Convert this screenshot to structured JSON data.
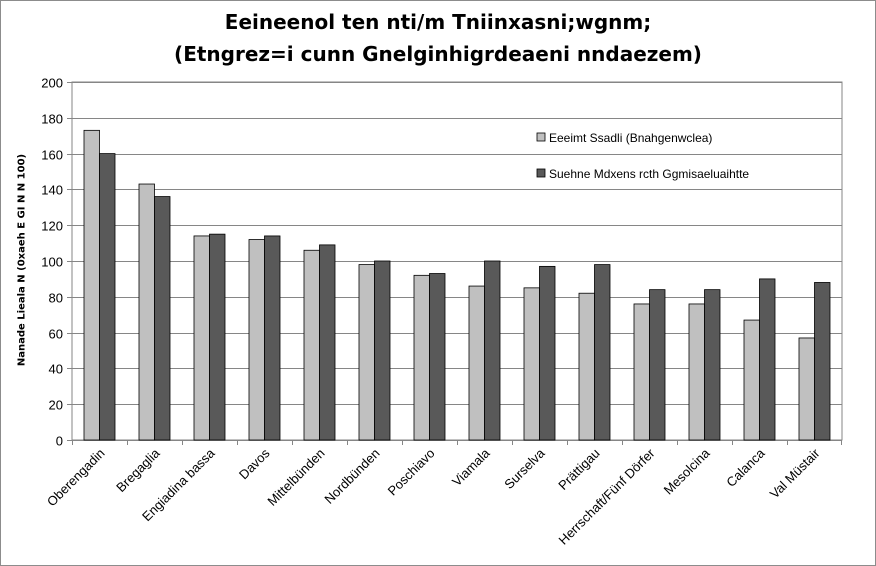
{
  "chart_data": {
    "type": "bar",
    "title_line1": "Eeineenol ten nti/m Tniinxasni;wgnm;",
    "title_line2": "(Etngrez=i cunn Gnelginhigrdeaeni nndaezem)",
    "ylabel": "Nanade Lieala N (0xaeh E GI N N 100)",
    "ylim": [
      0,
      200
    ],
    "yticks": [
      0,
      20,
      40,
      60,
      80,
      100,
      120,
      140,
      160,
      180,
      200
    ],
    "grid": true,
    "legend_position": "top-right",
    "categories": [
      "Oberengadin",
      "Bregaglia",
      "Engiadina bassa",
      "Davos",
      "Mittelbünden",
      "Nordbünden",
      "Poschiavo",
      "Viamala",
      "Surselva",
      "Prättigau",
      "Herrschaft/Fünf Dörfer",
      "Mesolcina",
      "Calanca",
      "Val Müstair"
    ],
    "series": [
      {
        "name": "Eeeimt Ssadli (Bnahgenwclea)",
        "color": "#c0c0c0",
        "values": [
          173,
          143,
          114,
          112,
          106,
          98,
          92,
          86,
          85,
          82,
          76,
          76,
          67,
          57
        ]
      },
      {
        "name": "Suehne Mdxens rcth Ggmisaeluaihtte",
        "color": "#595959",
        "values": [
          160,
          136,
          115,
          114,
          109,
          100,
          93,
          100,
          97,
          98,
          84,
          84,
          90,
          88
        ]
      }
    ]
  }
}
